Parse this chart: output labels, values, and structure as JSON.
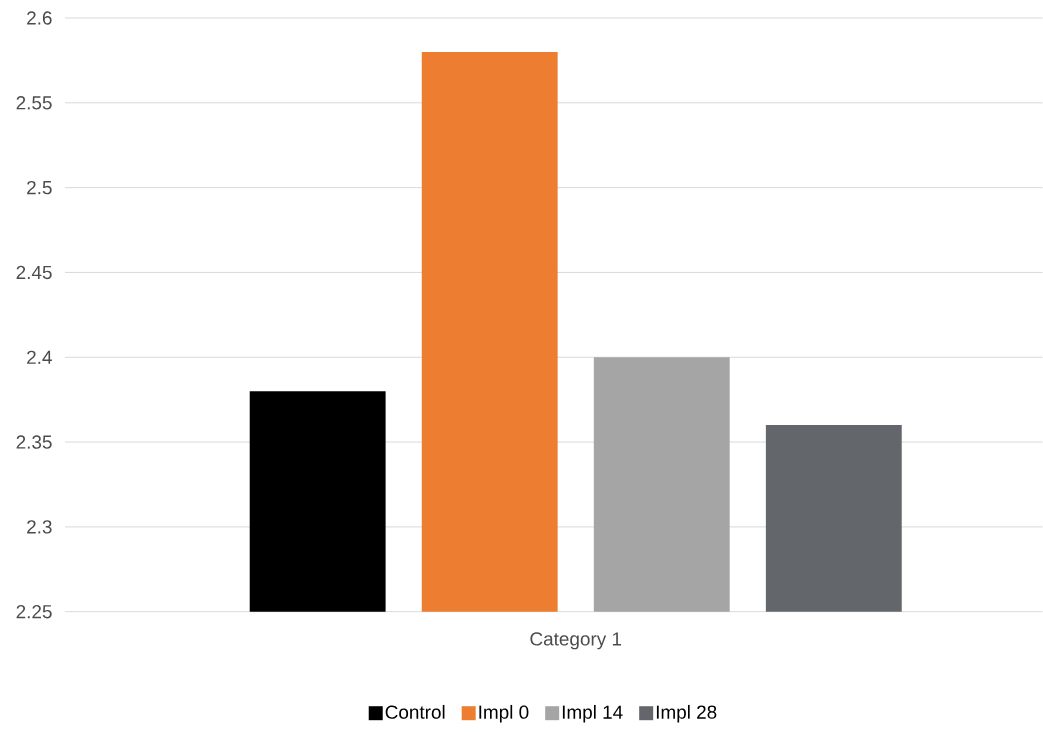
{
  "chart_data": {
    "type": "bar",
    "categories": [
      "Category 1"
    ],
    "series": [
      {
        "name": "Control",
        "color": "#000000",
        "values": [
          2.38
        ]
      },
      {
        "name": "Impl 0",
        "color": "#ed7d31",
        "values": [
          2.58
        ]
      },
      {
        "name": "Impl 14",
        "color": "#a5a5a5",
        "values": [
          2.4
        ]
      },
      {
        "name": "Impl 28",
        "color": "#63666a",
        "values": [
          2.36
        ]
      }
    ],
    "ylim": [
      2.25,
      2.6
    ],
    "yticks": [
      2.25,
      2.3,
      2.35,
      2.4,
      2.45,
      2.5,
      2.55,
      2.6
    ],
    "grid": "y",
    "legend": "bottom"
  }
}
